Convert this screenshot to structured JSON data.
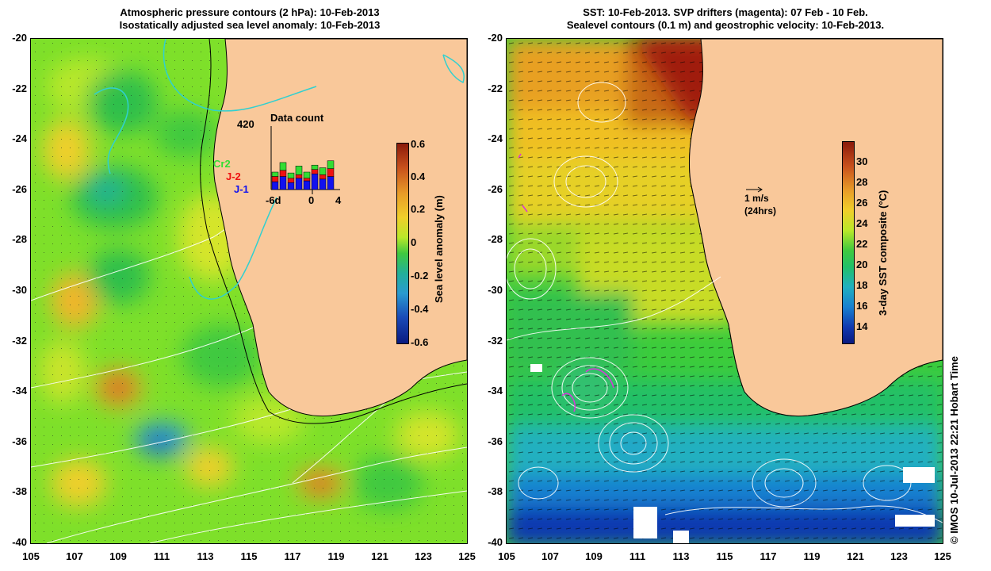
{
  "left_panel": {
    "title_line1": "Atmospheric pressure contours (2 hPa): 10-Feb-2013",
    "title_line2": "Isostatically adjusted sea level anomaly: 10-Feb-2013",
    "colorbar": {
      "label": "Sea level anomaly (m)",
      "ticks": [
        "0.6",
        "0.4",
        "0.2",
        "0",
        "-0.2",
        "-0.4",
        "-0.6"
      ]
    },
    "histogram": {
      "title": "Data count",
      "ymax_label": "420",
      "x_labels": [
        "-6d",
        "0",
        "4"
      ],
      "legend": [
        {
          "label": "Cr2",
          "color": "#33dd33"
        },
        {
          "label": "J-2",
          "color": "#ee1111"
        },
        {
          "label": "J-1",
          "color": "#1111ee"
        }
      ]
    }
  },
  "right_panel": {
    "title_line1": "SST: 10-Feb-2013. SVP drifters (magenta): 07 Feb - 10 Feb.",
    "title_line2": "Sealevel contours (0.1 m) and geostrophic velocity: 10-Feb-2013.",
    "colorbar": {
      "label": "3-day SST composite (°C)",
      "ticks": [
        "30",
        "28",
        "26",
        "24",
        "22",
        "20",
        "18",
        "16",
        "14"
      ]
    },
    "velocity_key": {
      "line1": "1 m/s",
      "line2": "(24hrs)"
    }
  },
  "y_ticks": [
    "-20",
    "-22",
    "-24",
    "-26",
    "-28",
    "-30",
    "-32",
    "-34",
    "-36",
    "-38",
    "-40"
  ],
  "x_ticks": [
    "105",
    "107",
    "109",
    "111",
    "113",
    "115",
    "117",
    "119",
    "121",
    "123",
    "125"
  ],
  "copyright": "© IMOS 10-Jul-2013 22:21 Hobart Time",
  "colors": {
    "land": "#f9c89a",
    "sla_base": "#7ee02a",
    "sst_base": "#3ccc3c"
  }
}
